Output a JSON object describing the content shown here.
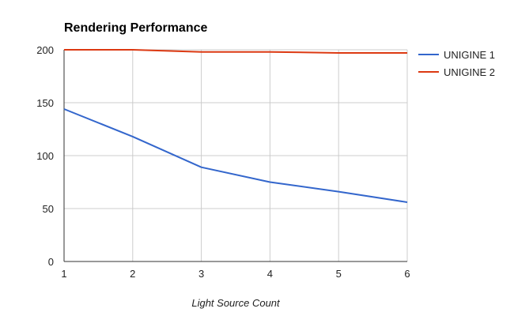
{
  "chart_data": {
    "type": "line",
    "title": "Rendering Performance",
    "xlabel": "Light Source Count",
    "ylabel": "",
    "x": [
      1,
      2,
      3,
      4,
      5,
      6
    ],
    "xlim": [
      1,
      6
    ],
    "ylim": [
      0,
      200
    ],
    "yticks": [
      0,
      50,
      100,
      150,
      200
    ],
    "xticks": [
      1,
      2,
      3,
      4,
      5,
      6
    ],
    "grid": true,
    "legend_position": "right",
    "series": [
      {
        "name": "UNIGINE 1",
        "color": "#3366cc",
        "values": [
          144,
          118,
          89,
          75,
          66,
          56
        ]
      },
      {
        "name": "UNIGINE 2",
        "color": "#dc3912",
        "values": [
          200,
          200,
          198,
          198,
          197,
          197
        ]
      }
    ]
  }
}
